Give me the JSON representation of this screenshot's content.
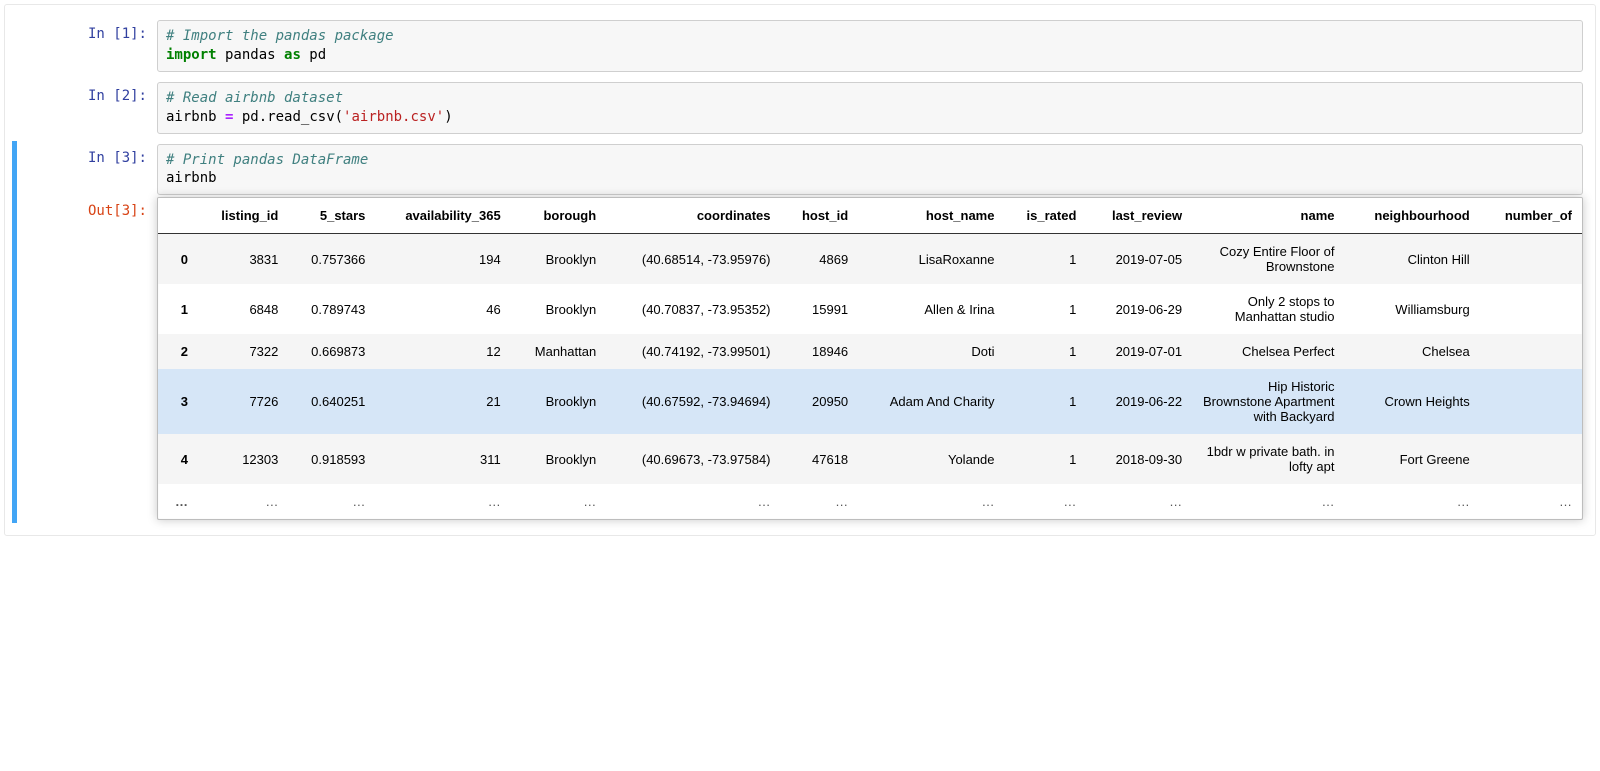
{
  "colors": {
    "prompt_in": "#303f9f",
    "prompt_out": "#d84315",
    "comment": "#408080",
    "keyword": "#008000",
    "string": "#ba2121",
    "operator_purple": "#aa22ff",
    "cell_bg": "#f7f7f7",
    "cell_border": "#cfcfcf",
    "table_header_border": "#333333",
    "row_stripe": "#f5f5f5",
    "row_highlight": "#d6e6f7",
    "selected_border": "#42a5f5",
    "shadow_border": "#bdbdbd"
  },
  "cells": {
    "c1": {
      "prompt": "In [1]:",
      "comment": "# Import the pandas package",
      "code_kw1": "import",
      "code_id1": " pandas ",
      "code_kw2": "as",
      "code_id2": " pd"
    },
    "c2": {
      "prompt": "In [2]:",
      "comment": "# Read airbnb dataset",
      "code_l1a": "airbnb ",
      "code_op": "=",
      "code_l1b": " pd",
      "code_l1c": ".",
      "code_l1d": "read_csv(",
      "code_str": "'airbnb.csv'",
      "code_l1e": ")"
    },
    "c3": {
      "prompt": "In [3]:",
      "out_prompt": "Out[3]:",
      "comment": "# Print pandas DataFrame",
      "code": "airbnb"
    }
  },
  "table": {
    "columns": [
      "",
      "listing_id",
      "5_stars",
      "availability_365",
      "borough",
      "coordinates",
      "host_id",
      "host_name",
      "is_rated",
      "last_review",
      "name",
      "neighbourhood",
      "number_of"
    ],
    "rows": [
      {
        "hl": false,
        "idx": "0",
        "listing_id": "3831",
        "five_stars": "0.757366",
        "availability_365": "194",
        "borough": "Brooklyn",
        "coordinates": "(40.68514, -73.95976)",
        "host_id": "4869",
        "host_name": "LisaRoxanne",
        "is_rated": "1",
        "last_review": "2019-07-05",
        "name": "Cozy Entire Floor of Brownstone",
        "neighbourhood": "Clinton Hill"
      },
      {
        "hl": false,
        "idx": "1",
        "listing_id": "6848",
        "five_stars": "0.789743",
        "availability_365": "46",
        "borough": "Brooklyn",
        "coordinates": "(40.70837, -73.95352)",
        "host_id": "15991",
        "host_name": "Allen & Irina",
        "is_rated": "1",
        "last_review": "2019-06-29",
        "name": "Only 2 stops to Manhattan studio",
        "neighbourhood": "Williamsburg"
      },
      {
        "hl": false,
        "idx": "2",
        "listing_id": "7322",
        "five_stars": "0.669873",
        "availability_365": "12",
        "borough": "Manhattan",
        "coordinates": "(40.74192, -73.99501)",
        "host_id": "18946",
        "host_name": "Doti",
        "is_rated": "1",
        "last_review": "2019-07-01",
        "name": "Chelsea Perfect",
        "neighbourhood": "Chelsea"
      },
      {
        "hl": true,
        "idx": "3",
        "listing_id": "7726",
        "five_stars": "0.640251",
        "availability_365": "21",
        "borough": "Brooklyn",
        "coordinates": "(40.67592, -73.94694)",
        "host_id": "20950",
        "host_name": "Adam And Charity",
        "is_rated": "1",
        "last_review": "2019-06-22",
        "name": "Hip Historic Brownstone Apartment with Backyard",
        "neighbourhood": "Crown Heights"
      },
      {
        "hl": false,
        "idx": "4",
        "listing_id": "12303",
        "five_stars": "0.918593",
        "availability_365": "311",
        "borough": "Brooklyn",
        "coordinates": "(40.69673, -73.97584)",
        "host_id": "47618",
        "host_name": "Yolande",
        "is_rated": "1",
        "last_review": "2018-09-30",
        "name": "1bdr w private bath. in lofty apt",
        "neighbourhood": "Fort Greene"
      }
    ],
    "ellipsis": "…"
  }
}
